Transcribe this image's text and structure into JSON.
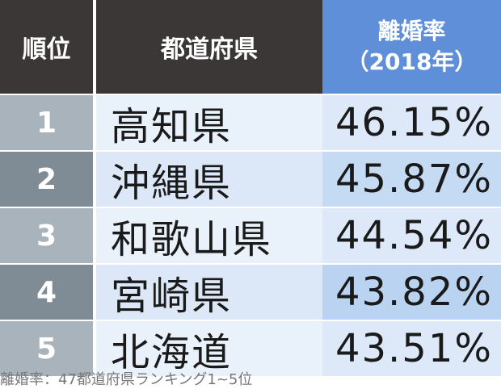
{
  "table": {
    "headers": {
      "rank": "順位",
      "prefecture": "都道府県",
      "rate_line1": "離婚率",
      "rate_line2": "（2018年）"
    },
    "rows": [
      {
        "rank": "1",
        "prefecture": "高知県",
        "rate": "46.15%"
      },
      {
        "rank": "2",
        "prefecture": "沖縄県",
        "rate": "45.87%"
      },
      {
        "rank": "3",
        "prefecture": "和歌山県",
        "rate": "44.54%"
      },
      {
        "rank": "4",
        "prefecture": "宮崎県",
        "rate": "43.82%"
      },
      {
        "rank": "5",
        "prefecture": "北海道",
        "rate": "43.51%"
      }
    ]
  },
  "caption": "離婚率：47都道府県ランキング1~5位",
  "colors": {
    "header_dark": "#3b3737",
    "header_accent": "#5e8fd8",
    "rank_light": "#a8b3bc",
    "rank_dark": "#7f8c96"
  }
}
